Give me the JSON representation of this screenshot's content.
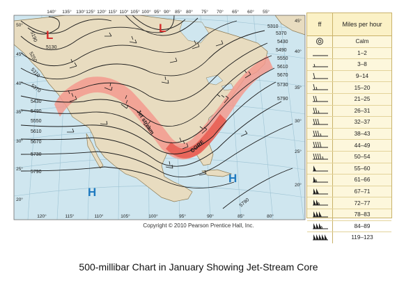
{
  "map": {
    "top_lon_labels": [
      "140°",
      "135°",
      "130°",
      "125°",
      "120°",
      "115°",
      "110°",
      "105°",
      "100°",
      "95°",
      "90°",
      "85°",
      "80°",
      "75°",
      "70°",
      "65°",
      "60°",
      "55°"
    ],
    "bottom_lon_labels": [
      "120°",
      "115°",
      "110°",
      "105°",
      "100°",
      "95°",
      "90°",
      "85°",
      "80°"
    ],
    "left_lat_labels": [
      "50°",
      "45°",
      "40°",
      "35°",
      "30°",
      "25°",
      "20°"
    ],
    "right_lat_labels": [
      "45°",
      "40°",
      "35°",
      "30°",
      "25°",
      "20°"
    ],
    "contour_labels_left": [
      "5130",
      "5190",
      "5250",
      "5310",
      "5370",
      "5430",
      "5490",
      "5550",
      "5610",
      "5670",
      "5730",
      "5790"
    ],
    "contour_labels_right": [
      "5310",
      "5370",
      "5430",
      "5490",
      "5550",
      "5610",
      "5670",
      "5730",
      "5790"
    ],
    "contour_label_lower": "5790",
    "lows": [
      {
        "symbol": "L",
        "value": "5130"
      },
      {
        "symbol": "L",
        "value": ""
      }
    ],
    "highs": [
      {
        "symbol": "H"
      },
      {
        "symbol": "H"
      }
    ],
    "jet_label": "Jet stream",
    "core_label": "CORE",
    "colors": {
      "ocean": "#cfe6ef",
      "land": "#e8dcc0",
      "jet_band": "#f39a8e",
      "core": "#e85a50",
      "low": "#d52b2b",
      "high": "#1f7ac0"
    }
  },
  "legend": {
    "header_symbol": "ff",
    "header_speed": "Miles per hour",
    "rows": [
      {
        "symbol": "calm-circle-icon",
        "speed": "Calm"
      },
      {
        "symbol": "barb-0",
        "speed": "1–2"
      },
      {
        "symbol": "barb-0.5",
        "speed": "3–8"
      },
      {
        "symbol": "barb-1",
        "speed": "9–14"
      },
      {
        "symbol": "barb-1.5",
        "speed": "15–20"
      },
      {
        "symbol": "barb-2",
        "speed": "21–25"
      },
      {
        "symbol": "barb-2.5",
        "speed": "26–31"
      },
      {
        "symbol": "barb-3",
        "speed": "32–37"
      },
      {
        "symbol": "barb-3.5",
        "speed": "38–43"
      },
      {
        "symbol": "barb-4",
        "speed": "44–49"
      },
      {
        "symbol": "barb-4.5",
        "speed": "50–54"
      },
      {
        "symbol": "flag-1",
        "speed": "55–60"
      },
      {
        "symbol": "flag-1.5",
        "speed": "61–66"
      },
      {
        "symbol": "flag-2",
        "speed": "67–71"
      },
      {
        "symbol": "flag-2.5",
        "speed": "72–77"
      },
      {
        "symbol": "flag-3",
        "speed": "78–83"
      },
      {
        "symbol": "flag-3.5",
        "speed": "84–89"
      },
      {
        "symbol": "flag-6",
        "speed": "119–123"
      }
    ]
  },
  "copyright": "Copyright © 2010 Pearson Prentice Hall, Inc.",
  "caption": "500-millibar Chart in January Showing Jet-Stream Core"
}
